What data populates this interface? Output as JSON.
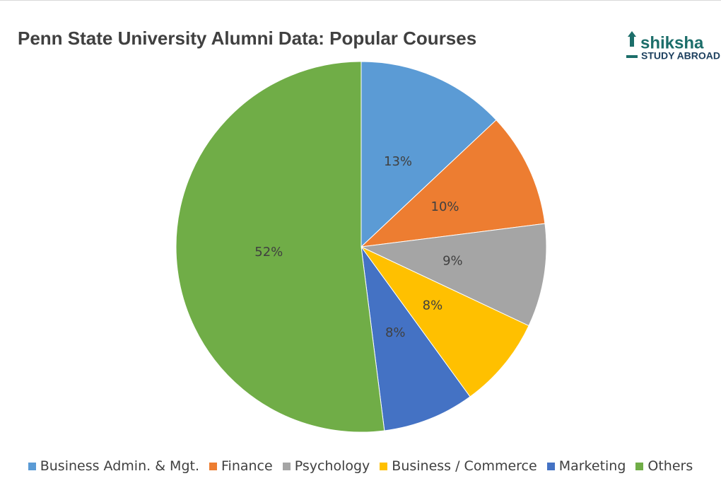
{
  "chart_data": {
    "type": "pie",
    "title": "Penn State University Alumni Data: Popular Courses",
    "categories": [
      "Business Admin. & Mgt.",
      "Finance",
      "Psychology",
      "Business / Commerce",
      "Marketing",
      "Others"
    ],
    "values": [
      13,
      10,
      9,
      8,
      8,
      52
    ],
    "value_labels": [
      "13%",
      "10%",
      "9%",
      "8%",
      "8%",
      "52%"
    ],
    "colors": [
      "#5b9bd5",
      "#ed7d31",
      "#a5a5a5",
      "#ffc000",
      "#4472c4",
      "#70ad47"
    ],
    "legend": "bottom"
  },
  "logo": {
    "name": "shiksha",
    "tagline": "STUDY ABROAD"
  }
}
